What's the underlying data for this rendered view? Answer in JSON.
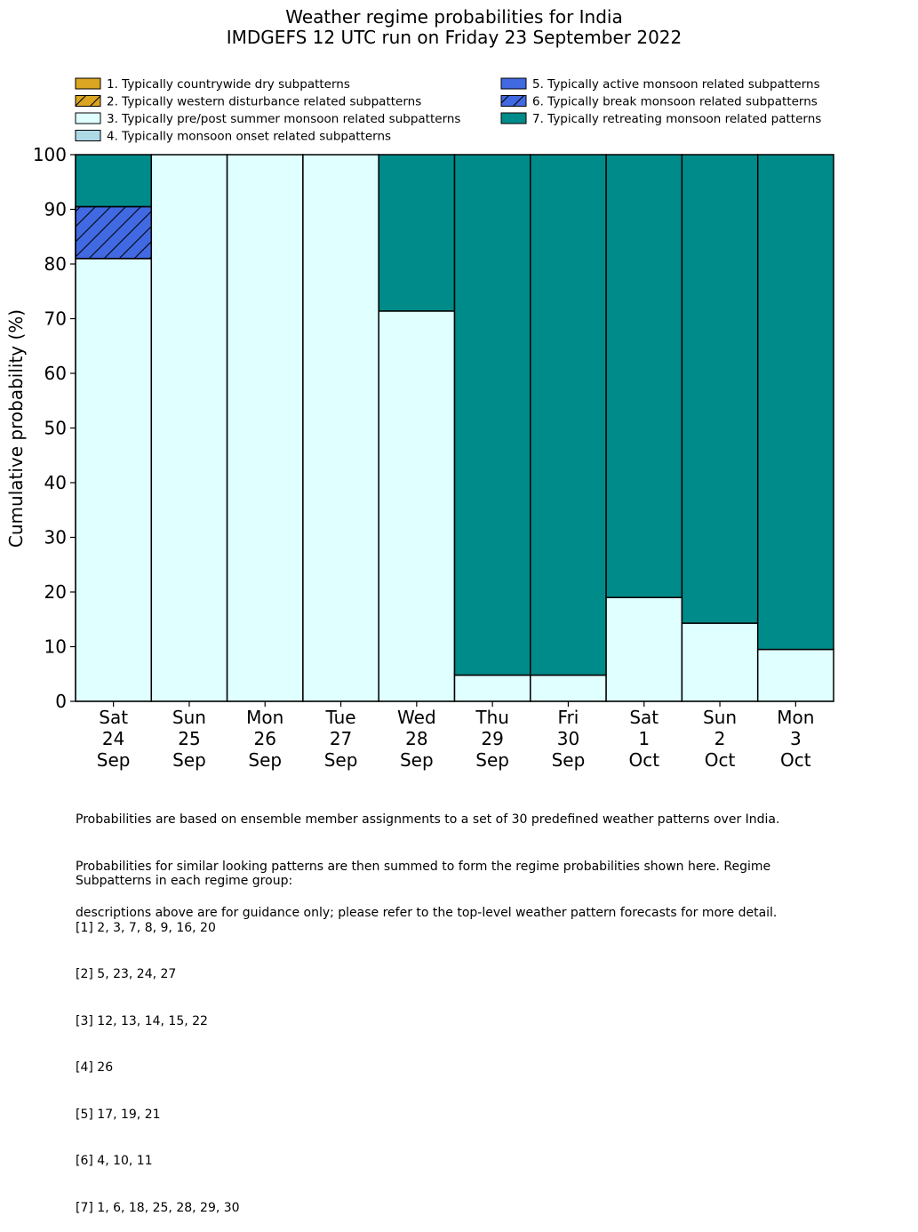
{
  "chart_data": {
    "type": "bar",
    "stacked": true,
    "title": "Weather regime probabilities for India",
    "subtitle": "IMDGEFS 12 UTC run on Friday 23 September 2022",
    "xlabel": "",
    "ylabel": "Cumulative probability (%)",
    "ylim": [
      0,
      100
    ],
    "yticks": [
      "0",
      "10",
      "20",
      "30",
      "40",
      "50",
      "60",
      "70",
      "80",
      "90",
      "100"
    ],
    "grid": false,
    "legend_position": "top",
    "categories": [
      [
        "Sat",
        "24",
        "Sep"
      ],
      [
        "Sun",
        "25",
        "Sep"
      ],
      [
        "Mon",
        "26",
        "Sep"
      ],
      [
        "Tue",
        "27",
        "Sep"
      ],
      [
        "Wed",
        "28",
        "Sep"
      ],
      [
        "Thu",
        "29",
        "Sep"
      ],
      [
        "Fri",
        "30",
        "Sep"
      ],
      [
        "Sat",
        "1",
        "Oct"
      ],
      [
        "Sun",
        "2",
        "Oct"
      ],
      [
        "Mon",
        "3",
        "Oct"
      ]
    ],
    "series": [
      {
        "name": "1. Typically countrywide dry subpatterns",
        "color": "#daa520",
        "hatch": false,
        "values": [
          0,
          0,
          0,
          0,
          0,
          0,
          0,
          0,
          0,
          0
        ]
      },
      {
        "name": "2. Typically western disturbance related subpatterns",
        "color": "#daa520",
        "hatch": true,
        "values": [
          0,
          0,
          0,
          0,
          0,
          0,
          0,
          0,
          0,
          0
        ]
      },
      {
        "name": "3. Typically pre/post summer monsoon related subpatterns",
        "color": "#e0ffff",
        "hatch": false,
        "values": [
          81.0,
          100,
          100,
          100,
          71.4,
          4.8,
          4.8,
          19.0,
          14.3,
          9.5
        ]
      },
      {
        "name": "4. Typically monsoon onset related subpatterns",
        "color": "#add8e6",
        "hatch": false,
        "values": [
          0,
          0,
          0,
          0,
          0,
          0,
          0,
          0,
          0,
          0
        ]
      },
      {
        "name": "5. Typically active monsoon related subpatterns",
        "color": "#4169e1",
        "hatch": false,
        "values": [
          0,
          0,
          0,
          0,
          0,
          0,
          0,
          0,
          0,
          0
        ]
      },
      {
        "name": "6. Typically break monsoon related subpatterns",
        "color": "#4169e1",
        "hatch": true,
        "values": [
          9.5,
          0,
          0,
          0,
          0,
          0,
          0,
          0,
          0,
          0
        ]
      },
      {
        "name": "7. Typically retreating monsoon related patterns",
        "color": "#008b8b",
        "hatch": false,
        "values": [
          9.5,
          0,
          0,
          0,
          28.6,
          95.2,
          95.2,
          81.0,
          85.7,
          90.5
        ]
      }
    ]
  },
  "notes": [
    "Probabilities are based on ensemble member assignments to a set of 30 predefined weather patterns over India.",
    "Probabilities for similar looking patterns are then summed to form the regime probabilities shown here. Regime",
    "descriptions above are for guidance only; please refer to the top-level weather pattern forecasts for more detail."
  ],
  "groups_heading": "Subpatterns in each regime group:",
  "groups": [
    "[1] 2, 3, 7, 8, 9, 16, 20",
    "[2] 5, 23, 24, 27",
    "[3] 12, 13, 14, 15, 22",
    "[4] 26",
    "[5] 17, 19, 21",
    "[6] 4, 10, 11",
    "[7] 1, 6, 18, 25, 28, 29, 30"
  ]
}
